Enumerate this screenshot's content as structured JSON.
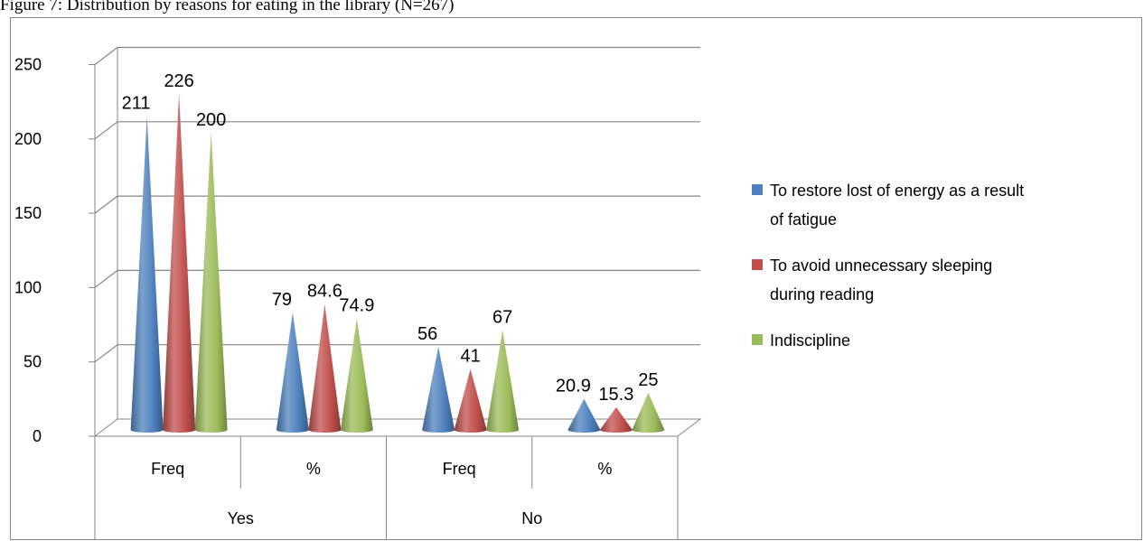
{
  "caption": "Figure 7: Distribution by reasons for eating in the library (N=267)",
  "chart_data": {
    "type": "bar",
    "bar_shape": "cone",
    "style": "3d",
    "categories": [
      "Freq",
      "%",
      "Freq",
      "%"
    ],
    "groups": [
      {
        "label": "Yes",
        "categories": [
          "Freq",
          "%"
        ]
      },
      {
        "label": "No",
        "categories": [
          "Freq",
          "%"
        ]
      }
    ],
    "series": [
      {
        "name": "To restore lost of energy as a result of fatigue",
        "color": "#4F81BD",
        "values": [
          211,
          79,
          56,
          20.9
        ]
      },
      {
        "name": "To avoid unnecessary sleeping during reading",
        "color": "#C0504D",
        "values": [
          226,
          84.6,
          41,
          15.3
        ]
      },
      {
        "name": "Indiscipline",
        "color": "#9BBB59",
        "values": [
          200,
          74.9,
          67,
          25
        ]
      }
    ],
    "data_labels": [
      [
        "211",
        "79",
        "56",
        "20.9"
      ],
      [
        "226",
        "84.6",
        "41",
        "15.3"
      ],
      [
        "200",
        "74.9",
        "67",
        "25"
      ]
    ],
    "y_ticks": [
      "0",
      "50",
      "100",
      "150",
      "200",
      "250"
    ],
    "ylim": [
      0,
      250
    ],
    "grid": true,
    "legend": "right"
  }
}
